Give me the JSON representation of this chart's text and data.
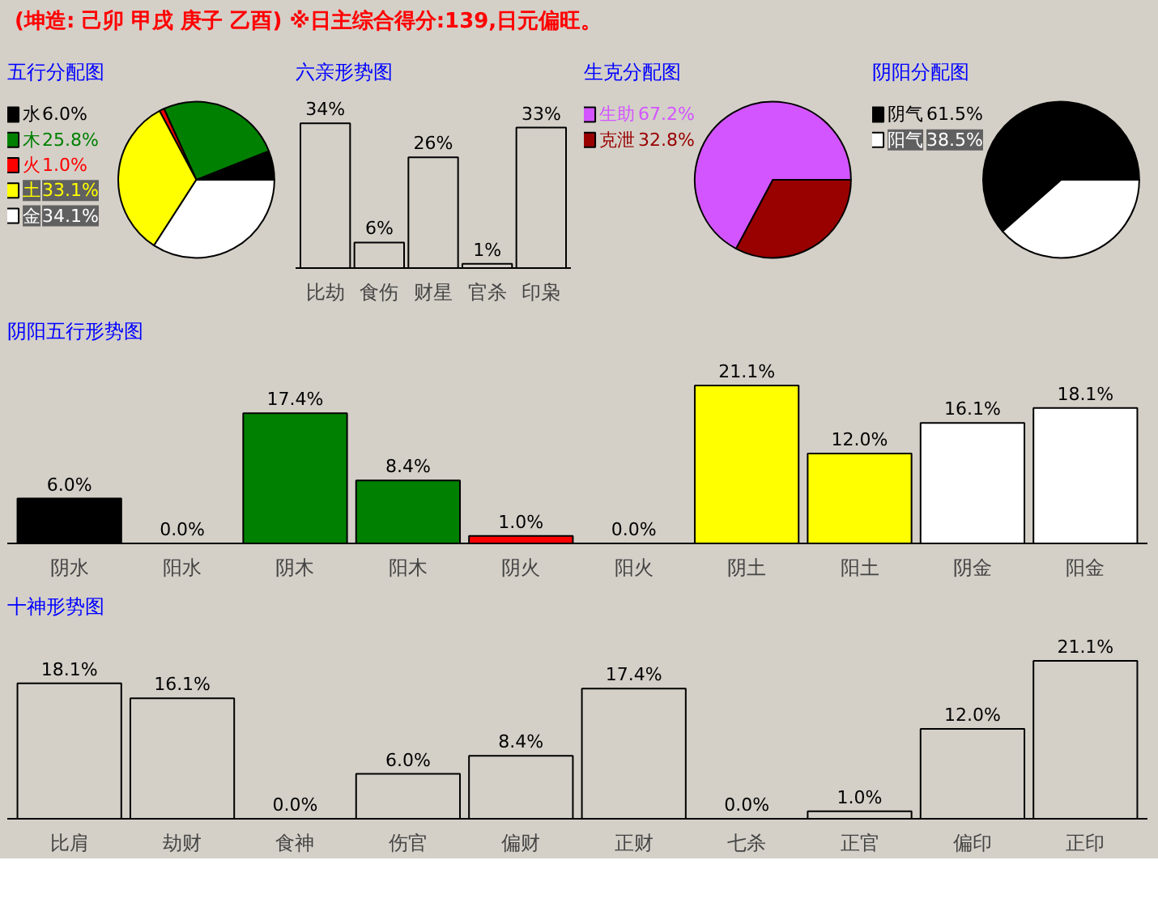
{
  "chart_data": [
    {
      "type": "pie",
      "title": "五行分配图",
      "annotations": [
        "(坤造: 己卯  甲戌  庚子  乙酉)   ※日主综合得分:139,日元偏旺。"
      ],
      "categories": [
        "水",
        "木",
        "火",
        "土",
        "金"
      ],
      "values": [
        6.0,
        25.8,
        1.0,
        33.1,
        34.1
      ],
      "value_labels": [
        "6.0%",
        "25.8%",
        "1.0%",
        "33.1%",
        "34.1%"
      ],
      "colors": [
        "#000000",
        "#008000",
        "#ff0000",
        "#ffff00",
        "#ffffff"
      ],
      "legend": "left"
    },
    {
      "type": "bar",
      "title": "六亲形势图",
      "categories": [
        "比劫",
        "食伤",
        "财星",
        "官杀",
        "印枭"
      ],
      "values": [
        34,
        6,
        26,
        1,
        33
      ],
      "value_labels": [
        "34%",
        "6%",
        "26%",
        "1%",
        "33%"
      ],
      "colors": [
        "#d4d0c8",
        "#d4d0c8",
        "#d4d0c8",
        "#d4d0c8",
        "#d4d0c8"
      ]
    },
    {
      "type": "pie",
      "title": "生克分配图",
      "categories": [
        "生助",
        "克泄"
      ],
      "values": [
        67.2,
        32.8
      ],
      "value_labels": [
        "67.2%",
        "32.8%"
      ],
      "colors": [
        "#d355ff",
        "#990000"
      ],
      "legend": "left"
    },
    {
      "type": "pie",
      "title": "阴阳分配图",
      "categories": [
        "阴气",
        "阳气"
      ],
      "values": [
        61.5,
        38.5
      ],
      "value_labels": [
        "61.5%",
        "38.5%"
      ],
      "colors": [
        "#000000",
        "#ffffff"
      ],
      "legend": "left"
    },
    {
      "type": "bar",
      "title": "阴阳五行形势图",
      "categories": [
        "阴水",
        "阳水",
        "阴木",
        "阳木",
        "阴火",
        "阳火",
        "阴土",
        "阳土",
        "阴金",
        "阳金"
      ],
      "values": [
        6.0,
        0.0,
        17.4,
        8.4,
        1.0,
        0.0,
        21.1,
        12.0,
        16.1,
        18.1
      ],
      "value_labels": [
        "6.0%",
        "0.0%",
        "17.4%",
        "8.4%",
        "1.0%",
        "0.0%",
        "21.1%",
        "12.0%",
        "16.1%",
        "18.1%"
      ],
      "colors": [
        "#000000",
        "#000000",
        "#008000",
        "#008000",
        "#ff0000",
        "#ff0000",
        "#ffff00",
        "#ffff00",
        "#ffffff",
        "#ffffff"
      ]
    },
    {
      "type": "bar",
      "title": "十神形势图",
      "categories": [
        "比肩",
        "劫财",
        "食神",
        "伤官",
        "偏财",
        "正财",
        "七杀",
        "正官",
        "偏印",
        "正印"
      ],
      "values": [
        18.1,
        16.1,
        0.0,
        6.0,
        8.4,
        17.4,
        0.0,
        1.0,
        12.0,
        21.1
      ],
      "value_labels": [
        "18.1%",
        "16.1%",
        "0.0%",
        "6.0%",
        "8.4%",
        "17.4%",
        "0.0%",
        "1.0%",
        "12.0%",
        "21.1%"
      ],
      "colors": [
        "#d4d0c8",
        "#d4d0c8",
        "#d4d0c8",
        "#d4d0c8",
        "#d4d0c8",
        "#d4d0c8",
        "#d4d0c8",
        "#d4d0c8",
        "#d4d0c8",
        "#d4d0c8"
      ]
    }
  ]
}
